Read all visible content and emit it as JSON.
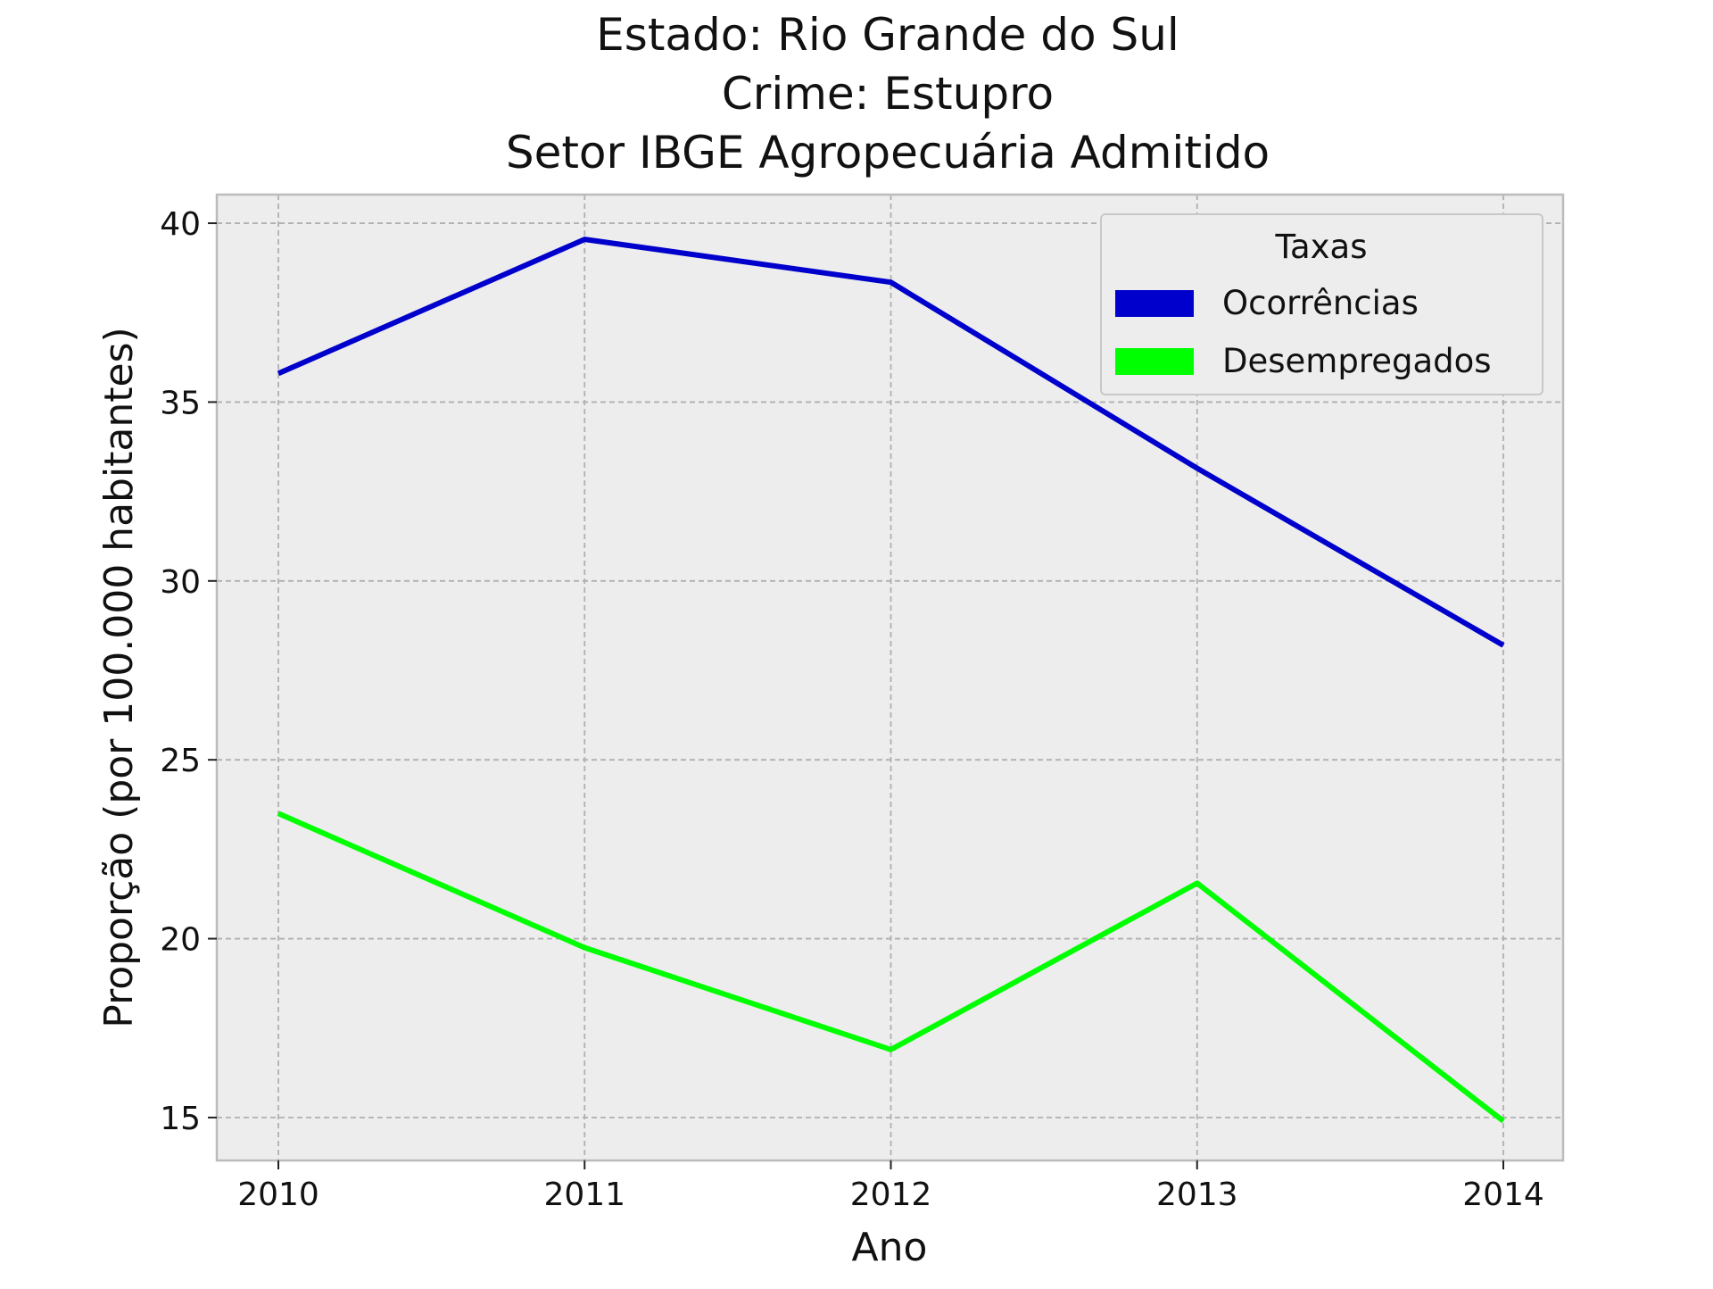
{
  "chart_data": {
    "type": "line",
    "title_lines": [
      "Estado: Rio Grande do Sul",
      "Crime: Estupro",
      "Setor IBGE  Agropecuária   Admitido"
    ],
    "xlabel": "Ano",
    "ylabel": "Proporção (por 100.000 habitantes)",
    "x": [
      2010,
      2011,
      2012,
      2013,
      2014
    ],
    "xticks": [
      "2010",
      "2011",
      "2012",
      "2013",
      "2014"
    ],
    "yticks": [
      "15",
      "20",
      "25",
      "30",
      "35",
      "40"
    ],
    "ylim": [
      13.8,
      40.8
    ],
    "grid": true,
    "legend": {
      "title": "Taxas",
      "placement": "top-right"
    },
    "series": [
      {
        "name": "Ocorrências",
        "color": "#0000cc",
        "values": [
          35.8,
          39.55,
          38.35,
          33.15,
          28.2
        ]
      },
      {
        "name": "Desempregados",
        "color": "#00ff00",
        "values": [
          23.5,
          19.75,
          16.9,
          21.55,
          14.9
        ]
      }
    ],
    "colors": {
      "plot_background": "#ededed",
      "grid": "#b0b0b0",
      "frame": "#bcbcbc"
    }
  }
}
